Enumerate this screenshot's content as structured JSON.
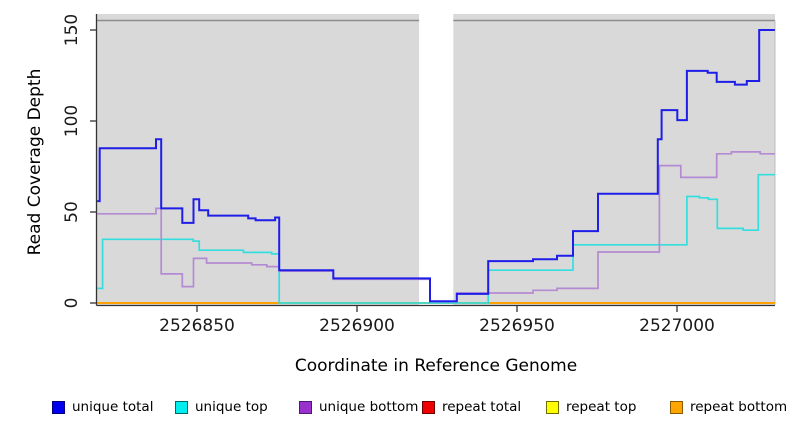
{
  "chart_data": {
    "type": "line",
    "style": "step",
    "title": "",
    "xlabel": "Coordinate in Reference Genome",
    "ylabel": "Read Coverage Depth",
    "xlim": [
      2526818.8,
      2527030.6
    ],
    "ylim": [
      0,
      150
    ],
    "x_ticks": [
      2526850,
      2526900,
      2526950,
      2527000
    ],
    "y_ticks": [
      0,
      50,
      100,
      150
    ],
    "grid": false,
    "panel_color": "#d9d9d9",
    "no_data_gap": [
      2526919.4,
      2526930.1
    ],
    "legend_position": "bottom",
    "draw_order": [
      "repeat total",
      "repeat top",
      "repeat bottom",
      "unique top",
      "unique bottom",
      "unique total"
    ],
    "series": [
      {
        "name": "unique total",
        "color": "#1e1ee8",
        "legend_fill": "#0000ee",
        "legend_border": "#000080",
        "steps": [
          [
            2526818.8,
            56
          ],
          [
            2526819.6,
            85
          ],
          [
            2526837.2,
            90
          ],
          [
            2526838.8,
            52
          ],
          [
            2526845.4,
            44
          ],
          [
            2526848.9,
            57
          ],
          [
            2526850.7,
            51
          ],
          [
            2526853.5,
            48
          ],
          [
            2526866.0,
            46.5
          ],
          [
            2526868.3,
            45.5
          ],
          [
            2526874.4,
            47
          ],
          [
            2526875.7,
            18
          ],
          [
            2526892.6,
            13.5
          ],
          [
            2526922.8,
            1
          ],
          [
            2526931.2,
            5
          ],
          [
            2526941.0,
            23
          ],
          [
            2526955.0,
            24
          ],
          [
            2526962.5,
            26
          ],
          [
            2526967.5,
            39.5
          ],
          [
            2526975.3,
            60
          ],
          [
            2526994.0,
            90
          ],
          [
            2526995.2,
            106
          ],
          [
            2527000.1,
            100.5
          ],
          [
            2527003.1,
            127.5
          ],
          [
            2527009.6,
            126.5
          ],
          [
            2527012.4,
            121.5
          ],
          [
            2527018.1,
            120
          ],
          [
            2527021.8,
            122
          ],
          [
            2527025.7,
            150
          ]
        ],
        "end": 2527030.6
      },
      {
        "name": "unique top",
        "color": "#35dede",
        "legend_fill": "#00eeee",
        "legend_border": "#006868",
        "steps": [
          [
            2526818.8,
            8
          ],
          [
            2526820.5,
            35
          ],
          [
            2526848.8,
            34
          ],
          [
            2526850.7,
            29
          ],
          [
            2526864.5,
            27.8
          ],
          [
            2526873.3,
            27
          ],
          [
            2526875.7,
            0
          ],
          [
            2526941.0,
            18
          ],
          [
            2526967.5,
            32
          ],
          [
            2527003.1,
            58.5
          ],
          [
            2527007.0,
            57.8
          ],
          [
            2527009.8,
            57
          ],
          [
            2527012.6,
            41
          ],
          [
            2527020.7,
            40
          ],
          [
            2527025.4,
            70.5
          ]
        ],
        "end": 2527030.6
      },
      {
        "name": "unique bottom",
        "color": "#b48ad2",
        "legend_fill": "#9932cc",
        "legend_border": "#4b1a78",
        "steps": [
          [
            2526818.8,
            49
          ],
          [
            2526837.2,
            52
          ],
          [
            2526838.8,
            16
          ],
          [
            2526845.4,
            9
          ],
          [
            2526848.9,
            24.5
          ],
          [
            2526853.0,
            22
          ],
          [
            2526867.1,
            21
          ],
          [
            2526871.8,
            20
          ],
          [
            2526875.7,
            17.5
          ],
          [
            2526892.6,
            13
          ],
          [
            2526922.8,
            0.7
          ],
          [
            2526931.2,
            5.5
          ],
          [
            2526955.0,
            7
          ],
          [
            2526962.5,
            8
          ],
          [
            2526975.3,
            28
          ],
          [
            2526994.5,
            75.5
          ],
          [
            2527001.2,
            69
          ],
          [
            2527012.4,
            82
          ],
          [
            2527017.0,
            83
          ],
          [
            2527026.0,
            82
          ]
        ],
        "end": 2527030.6
      },
      {
        "name": "repeat total",
        "color": "#dd0000",
        "legend_fill": "#ee0000",
        "legend_border": "#700000",
        "steps": [
          [
            2526818.8,
            0
          ]
        ],
        "end": 2527030.6
      },
      {
        "name": "repeat top",
        "color": "#f5f500",
        "legend_fill": "#ffff00",
        "legend_border": "#6e6e00",
        "steps": [
          [
            2526818.8,
            0
          ]
        ],
        "end": 2527030.6
      },
      {
        "name": "repeat bottom",
        "color": "#ff9d00",
        "legend_fill": "#ffa500",
        "legend_border": "#8a5a00",
        "steps": [
          [
            2526818.8,
            0
          ]
        ],
        "end": 2527030.6
      }
    ]
  }
}
